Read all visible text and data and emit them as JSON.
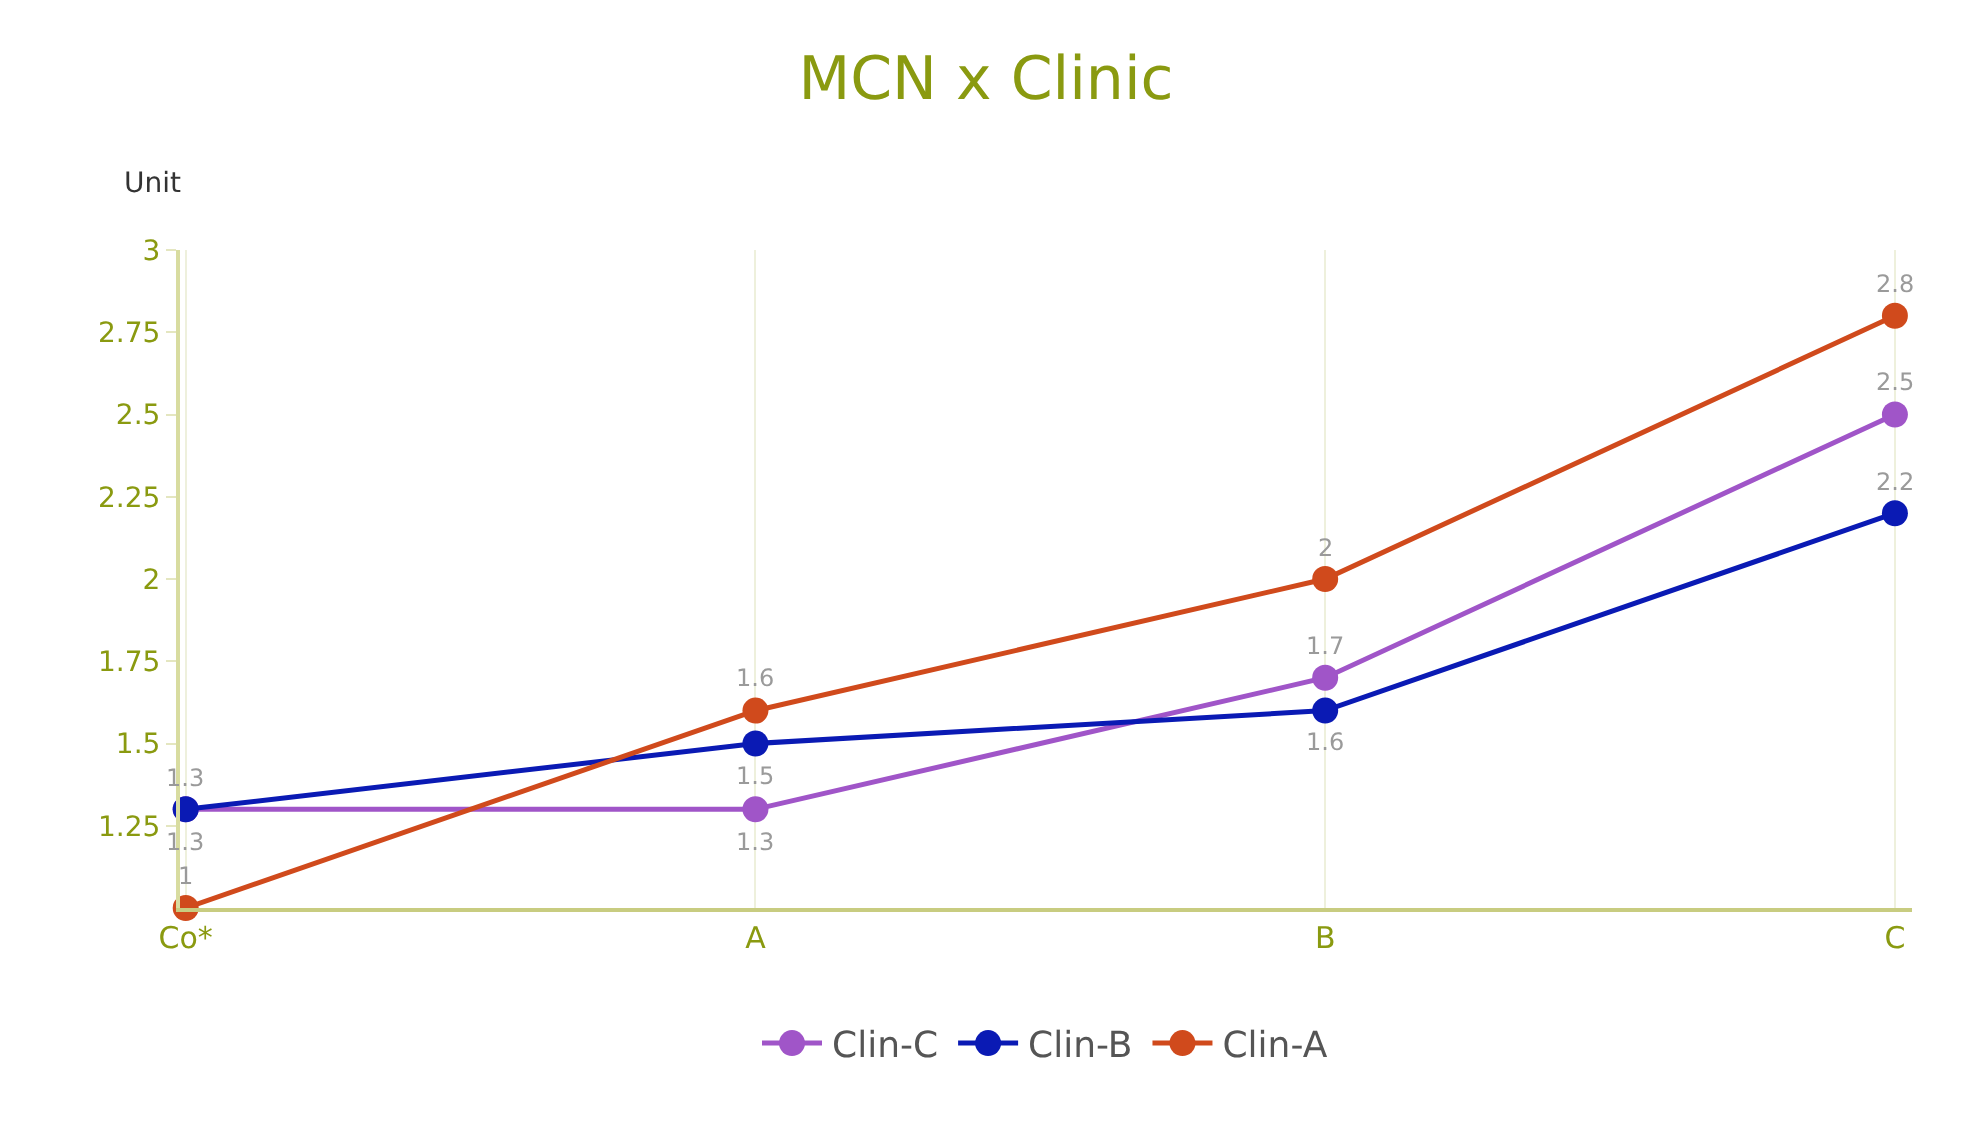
{
  "chart_data": {
    "type": "line",
    "title": "MCN x Clinic",
    "ylabel": "Unit",
    "categories": [
      "Co*",
      "A",
      "B",
      "C"
    ],
    "series": [
      {
        "name": "Clin-C",
        "color": "#a055c8",
        "values": [
          1.3,
          1.3,
          1.7,
          2.5
        ]
      },
      {
        "name": "Clin-B",
        "color": "#0a1ab4",
        "values": [
          1.3,
          1.5,
          1.6,
          2.2
        ]
      },
      {
        "name": "Clin-A",
        "color": "#d04a1c",
        "values": [
          1,
          1.6,
          2,
          2.8
        ]
      }
    ],
    "ylim": [
      1,
      3
    ],
    "yticks": [
      1.25,
      1.5,
      1.75,
      2,
      2.25,
      2.5,
      2.75,
      3
    ],
    "grid": "x",
    "legend": "bottom",
    "marker": "circle",
    "line_style": "solid",
    "data_labels": true
  }
}
